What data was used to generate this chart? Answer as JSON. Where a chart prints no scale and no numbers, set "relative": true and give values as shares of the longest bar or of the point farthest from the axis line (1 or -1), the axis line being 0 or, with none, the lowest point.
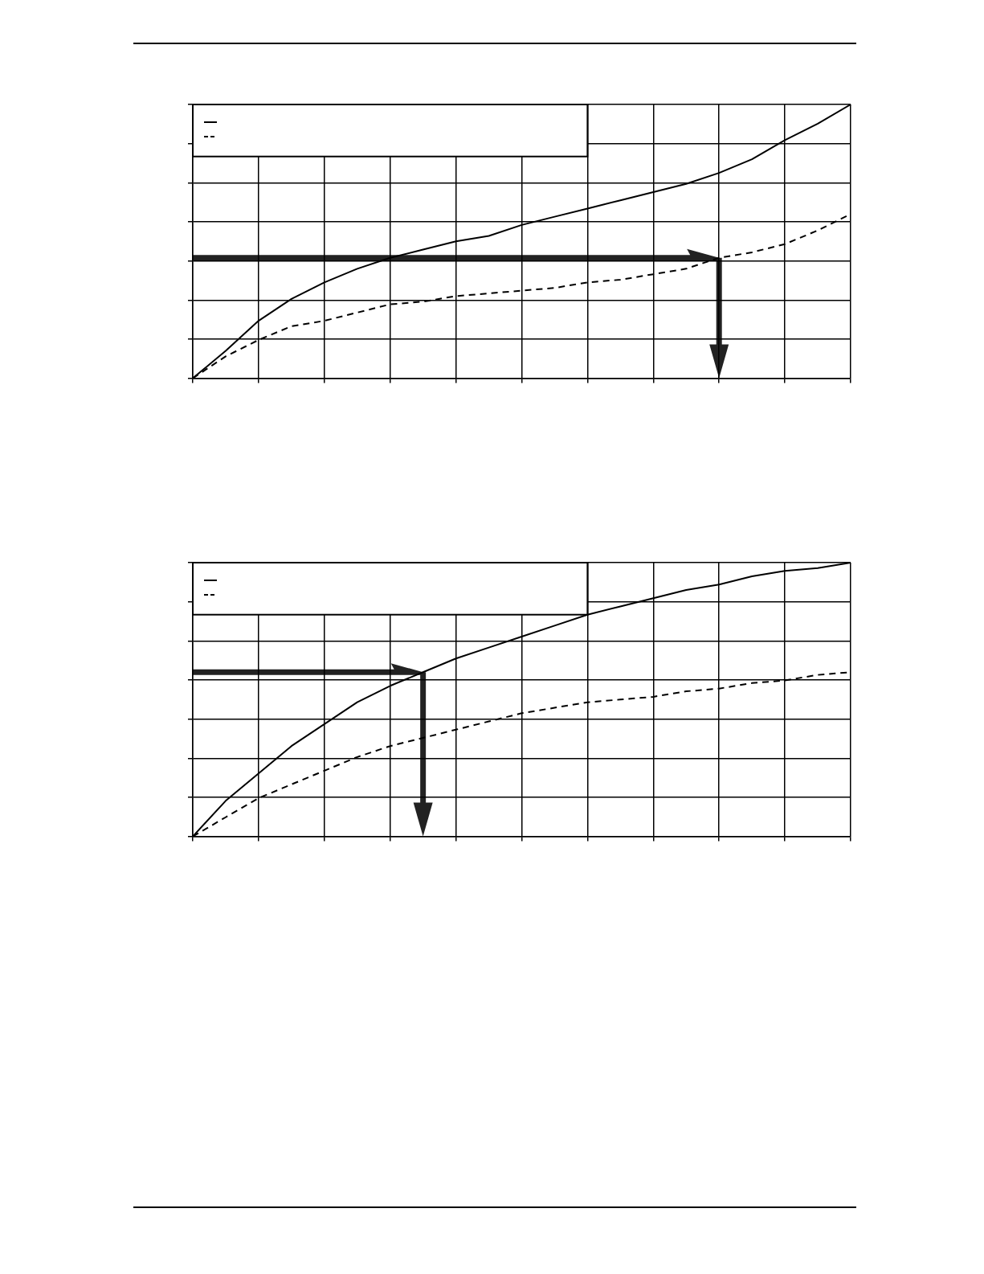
{
  "chart_data": [
    {
      "type": "line",
      "relative": true,
      "grid": true,
      "marker": "none",
      "categories": [
        null,
        null,
        null,
        null,
        null,
        null,
        null,
        null,
        null,
        null,
        null,
        null,
        null,
        null,
        null,
        null,
        null,
        null,
        null,
        null,
        null
      ],
      "series": [
        {
          "color": "#000000",
          "line_style": "solid",
          "values": [
            0,
            0.1,
            0.21,
            0.29,
            0.35,
            0.4,
            0.44,
            0.47,
            0.5,
            0.52,
            0.56,
            0.59,
            0.62,
            0.65,
            0.68,
            0.71,
            0.75,
            0.8,
            0.87,
            0.93,
            1
          ]
        },
        {
          "color": "#000000",
          "line_style": "dashed",
          "values": [
            0,
            0.08,
            0.14,
            0.19,
            0.21,
            0.24,
            0.27,
            0.28,
            0.3,
            0.31,
            0.32,
            0.33,
            0.35,
            0.36,
            0.38,
            0.4,
            0.44,
            0.46,
            0.49,
            0.54,
            0.6
          ]
        }
      ]
    },
    {
      "type": "line",
      "relative": true,
      "grid": true,
      "marker": "none",
      "categories": [
        null,
        null,
        null,
        null,
        null,
        null,
        null,
        null,
        null,
        null,
        null,
        null,
        null,
        null,
        null,
        null,
        null,
        null,
        null,
        null,
        null
      ],
      "series": [
        {
          "color": "#000000",
          "line_style": "solid",
          "values": [
            0,
            0.13,
            0.23,
            0.33,
            0.41,
            0.49,
            0.55,
            0.6,
            0.65,
            0.69,
            0.73,
            0.77,
            0.81,
            0.84,
            0.87,
            0.9,
            0.92,
            0.95,
            0.97,
            0.98,
            1
          ]
        },
        {
          "color": "#000000",
          "line_style": "dashed",
          "values": [
            0,
            0.07,
            0.14,
            0.19,
            0.24,
            0.29,
            0.33,
            0.36,
            0.39,
            0.42,
            0.45,
            0.47,
            0.49,
            0.5,
            0.51,
            0.53,
            0.54,
            0.56,
            0.57,
            0.59,
            0.6
          ]
        }
      ]
    }
  ]
}
